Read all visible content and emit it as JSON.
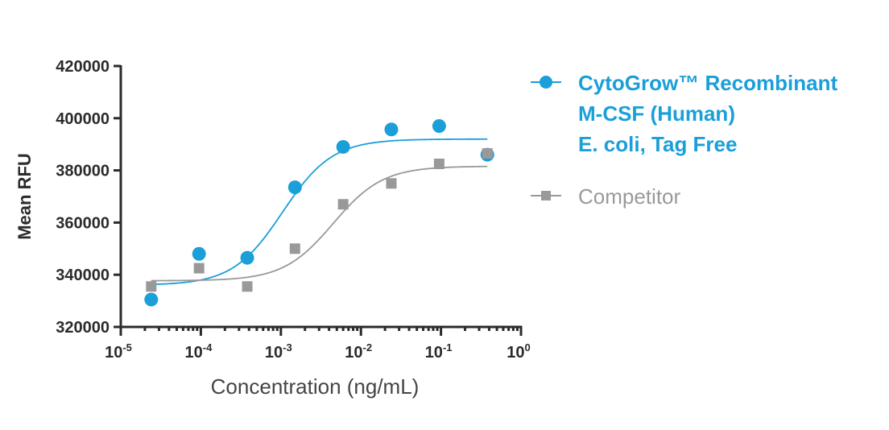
{
  "chart_data": {
    "type": "scatter",
    "xlabel": "Concentration (ng/mL)",
    "ylabel": "Mean RFU",
    "xscale": "log",
    "xlim_exp": [
      -5,
      0
    ],
    "xticks": [
      {
        "base": "10",
        "exp": "-5"
      },
      {
        "base": "10",
        "exp": "-4"
      },
      {
        "base": "10",
        "exp": "-3"
      },
      {
        "base": "10",
        "exp": "-2"
      },
      {
        "base": "10",
        "exp": "-1"
      },
      {
        "base": "10",
        "exp": "0"
      }
    ],
    "ylim": [
      320000,
      420000
    ],
    "yticks": [
      "320000",
      "340000",
      "360000",
      "380000",
      "400000",
      "420000"
    ],
    "grid": false,
    "legend_position": "right",
    "series": [
      {
        "name_lines": [
          "CytoGrow™ Recombinant",
          "M-CSF (Human)",
          "E. coli, Tag Free"
        ],
        "color": "#1a9fd9",
        "marker": "circle",
        "x": [
          2.4e-05,
          9.5e-05,
          0.00038,
          0.0015,
          0.006,
          0.024,
          0.095,
          0.38
        ],
        "y": [
          330500,
          348000,
          346500,
          373500,
          389000,
          395700,
          397000,
          386000
        ],
        "fit": {
          "bottom": 336000,
          "top": 392000,
          "ec50": 0.00105,
          "hill": 1.4
        }
      },
      {
        "name_lines": [
          "Competitor"
        ],
        "color": "#999999",
        "marker": "square",
        "x": [
          2.4e-05,
          9.5e-05,
          0.00038,
          0.0015,
          0.006,
          0.024,
          0.095,
          0.38
        ],
        "y": [
          335500,
          342500,
          335500,
          350000,
          367000,
          375000,
          382500,
          386500
        ],
        "fit": {
          "bottom": 337700,
          "top": 381600,
          "ec50": 0.0045,
          "hill": 1.4
        }
      }
    ]
  }
}
